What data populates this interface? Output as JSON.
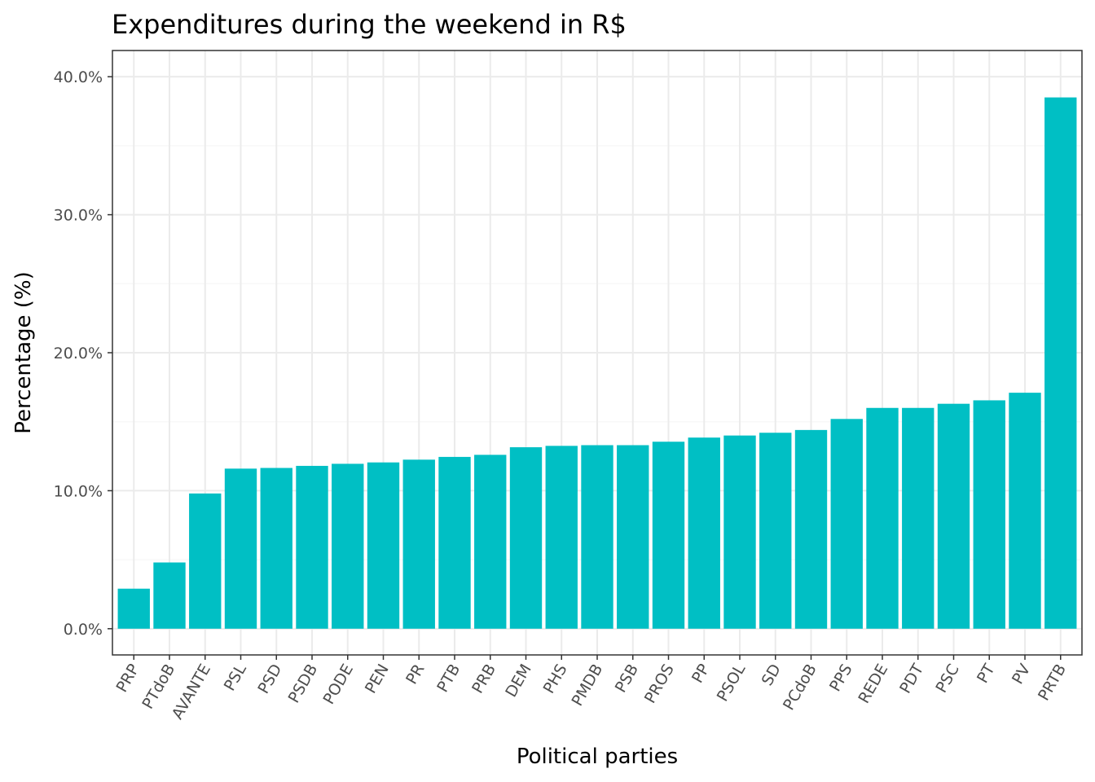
{
  "chart_data": {
    "type": "bar",
    "title": "Expenditures during the weekend in R$",
    "xlabel": "Political parties",
    "ylabel": "Percentage (%)",
    "ylim": [
      -1.9,
      41.9
    ],
    "yticks": [
      0,
      10,
      20,
      30,
      40
    ],
    "ytick_labels": [
      "0.0%",
      "10.0%",
      "20.0%",
      "30.0%",
      "40.0%"
    ],
    "grid": true,
    "bar_color": "#00BFC4",
    "categories": [
      "PRP",
      "PTdoB",
      "AVANTE",
      "PSL",
      "PSD",
      "PSDB",
      "PODE",
      "PEN",
      "PR",
      "PTB",
      "PRB",
      "DEM",
      "PHS",
      "PMDB",
      "PSB",
      "PROS",
      "PP",
      "PSOL",
      "SD",
      "PCdoB",
      "PPS",
      "REDE",
      "PDT",
      "PSC",
      "PT",
      "PV",
      "PRTB"
    ],
    "values": [
      2.9,
      4.8,
      9.8,
      11.6,
      11.65,
      11.8,
      11.95,
      12.05,
      12.25,
      12.45,
      12.6,
      13.15,
      13.25,
      13.3,
      13.3,
      13.55,
      13.85,
      14.0,
      14.2,
      14.4,
      15.2,
      16.0,
      16.0,
      16.3,
      16.55,
      17.1,
      38.5
    ]
  }
}
